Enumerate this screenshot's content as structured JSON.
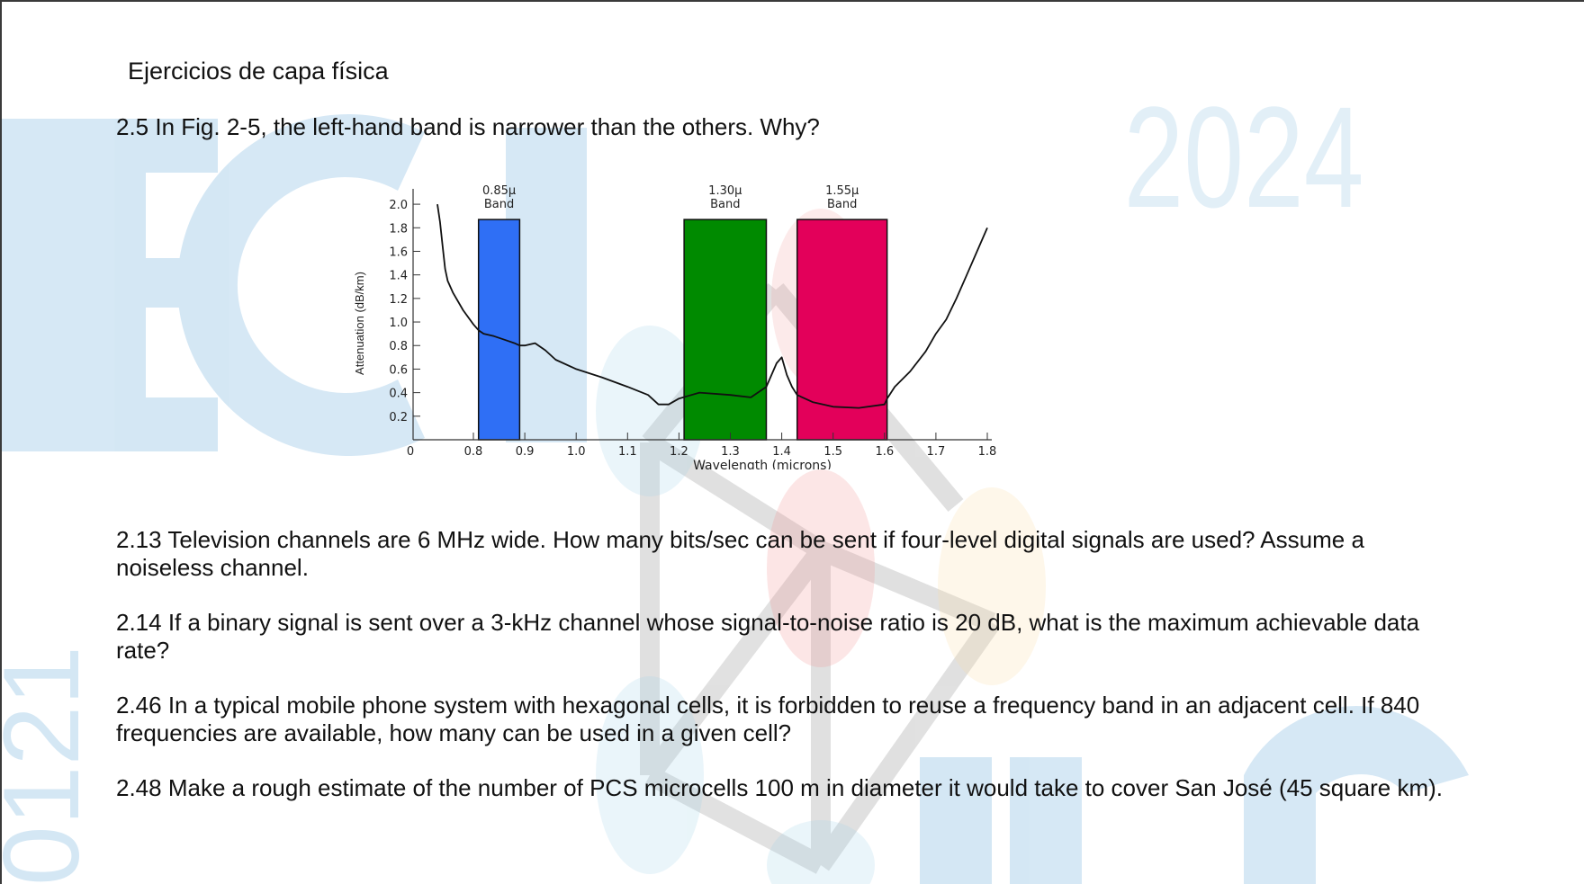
{
  "document": {
    "heading": "Ejercicios de capa física",
    "watermark_year": "2024",
    "watermark_code": "0121",
    "questions": [
      {
        "text": "2.5 In Fig. 2-5, the left-hand band is narrower than the others. Why?"
      },
      {
        "text": "2.13 Television channels are 6 MHz wide. How many bits/sec can be sent if four-level digital signals are used? Assume a noiseless channel."
      },
      {
        "text": "2.14 If a binary signal is sent over a 3-kHz channel whose signal-to-noise ratio is 20 dB, what is the maximum achievable data rate?"
      },
      {
        "text": "2.46 In a typical mobile phone system with hexagonal cells, it is forbidden to reuse a frequency band in an adjacent cell. If 840 frequencies are available, how many can be used in a given cell?"
      },
      {
        "text": "2.48 Make a rough estimate of the number of PCS microcells 100 m in diameter it would take to cover San José (45 square km)."
      }
    ]
  },
  "chart_data": {
    "type": "line",
    "xlabel": "Wavelength (microns)",
    "ylabel": "Attenuation (dB/km)",
    "xlim": [
      0.7,
      1.8
    ],
    "ylim": [
      0,
      2.1
    ],
    "x_ticks": [
      "0",
      "0.8",
      "0.9",
      "1.0",
      "1.1",
      "1.2",
      "1.3",
      "1.4",
      "1.5",
      "1.6",
      "1.7",
      "1.8"
    ],
    "y_ticks": [
      "0.2",
      "0.4",
      "0.6",
      "0.8",
      "1.0",
      "1.2",
      "1.4",
      "1.6",
      "1.8",
      "2.0"
    ],
    "grid": false,
    "bands": [
      {
        "label_top": "0.85µ",
        "label_bottom": "Band",
        "x_start": 0.81,
        "x_end": 0.89,
        "height": 1.87,
        "color": "#2f6ff5"
      },
      {
        "label_top": "1.30µ",
        "label_bottom": "Band",
        "x_start": 1.21,
        "x_end": 1.37,
        "height": 1.87,
        "color": "#008a00"
      },
      {
        "label_top": "1.55µ",
        "label_bottom": "Band",
        "x_start": 1.43,
        "x_end": 1.605,
        "height": 1.87,
        "color": "#e3005a"
      }
    ],
    "series": [
      {
        "color": "#111111",
        "x": [
          0.73,
          0.735,
          0.74,
          0.745,
          0.75,
          0.76,
          0.78,
          0.8,
          0.81,
          0.82,
          0.84,
          0.86,
          0.88,
          0.89,
          0.9,
          0.92,
          0.94,
          0.96,
          1.0,
          1.05,
          1.1,
          1.14,
          1.16,
          1.18,
          1.2,
          1.24,
          1.3,
          1.34,
          1.37,
          1.38,
          1.39,
          1.4,
          1.41,
          1.42,
          1.43,
          1.46,
          1.5,
          1.55,
          1.6,
          1.605,
          1.62,
          1.65,
          1.68,
          1.7,
          1.72,
          1.74,
          1.76,
          1.78,
          1.8
        ],
        "y": [
          2.0,
          1.85,
          1.65,
          1.45,
          1.35,
          1.25,
          1.1,
          0.98,
          0.93,
          0.9,
          0.88,
          0.85,
          0.82,
          0.8,
          0.8,
          0.82,
          0.76,
          0.68,
          0.6,
          0.53,
          0.45,
          0.38,
          0.3,
          0.3,
          0.35,
          0.4,
          0.38,
          0.36,
          0.45,
          0.55,
          0.65,
          0.7,
          0.55,
          0.45,
          0.38,
          0.32,
          0.28,
          0.27,
          0.3,
          0.35,
          0.45,
          0.58,
          0.75,
          0.9,
          1.02,
          1.2,
          1.4,
          1.6,
          1.8
        ]
      }
    ]
  }
}
